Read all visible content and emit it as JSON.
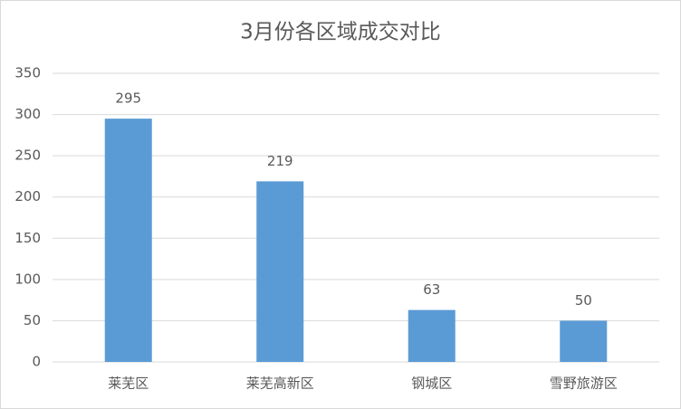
{
  "chart_data": {
    "type": "bar",
    "title": "3月份各区域成交对比",
    "categories": [
      "莱芜区",
      "莱芜高新区",
      "钢城区",
      "雪野旅游区"
    ],
    "values": [
      295,
      219,
      63,
      50
    ],
    "color": "#5b9bd5",
    "ylim": [
      0,
      350
    ],
    "yticks": [
      0,
      50,
      100,
      150,
      200,
      250,
      300,
      350
    ],
    "grid": true
  }
}
